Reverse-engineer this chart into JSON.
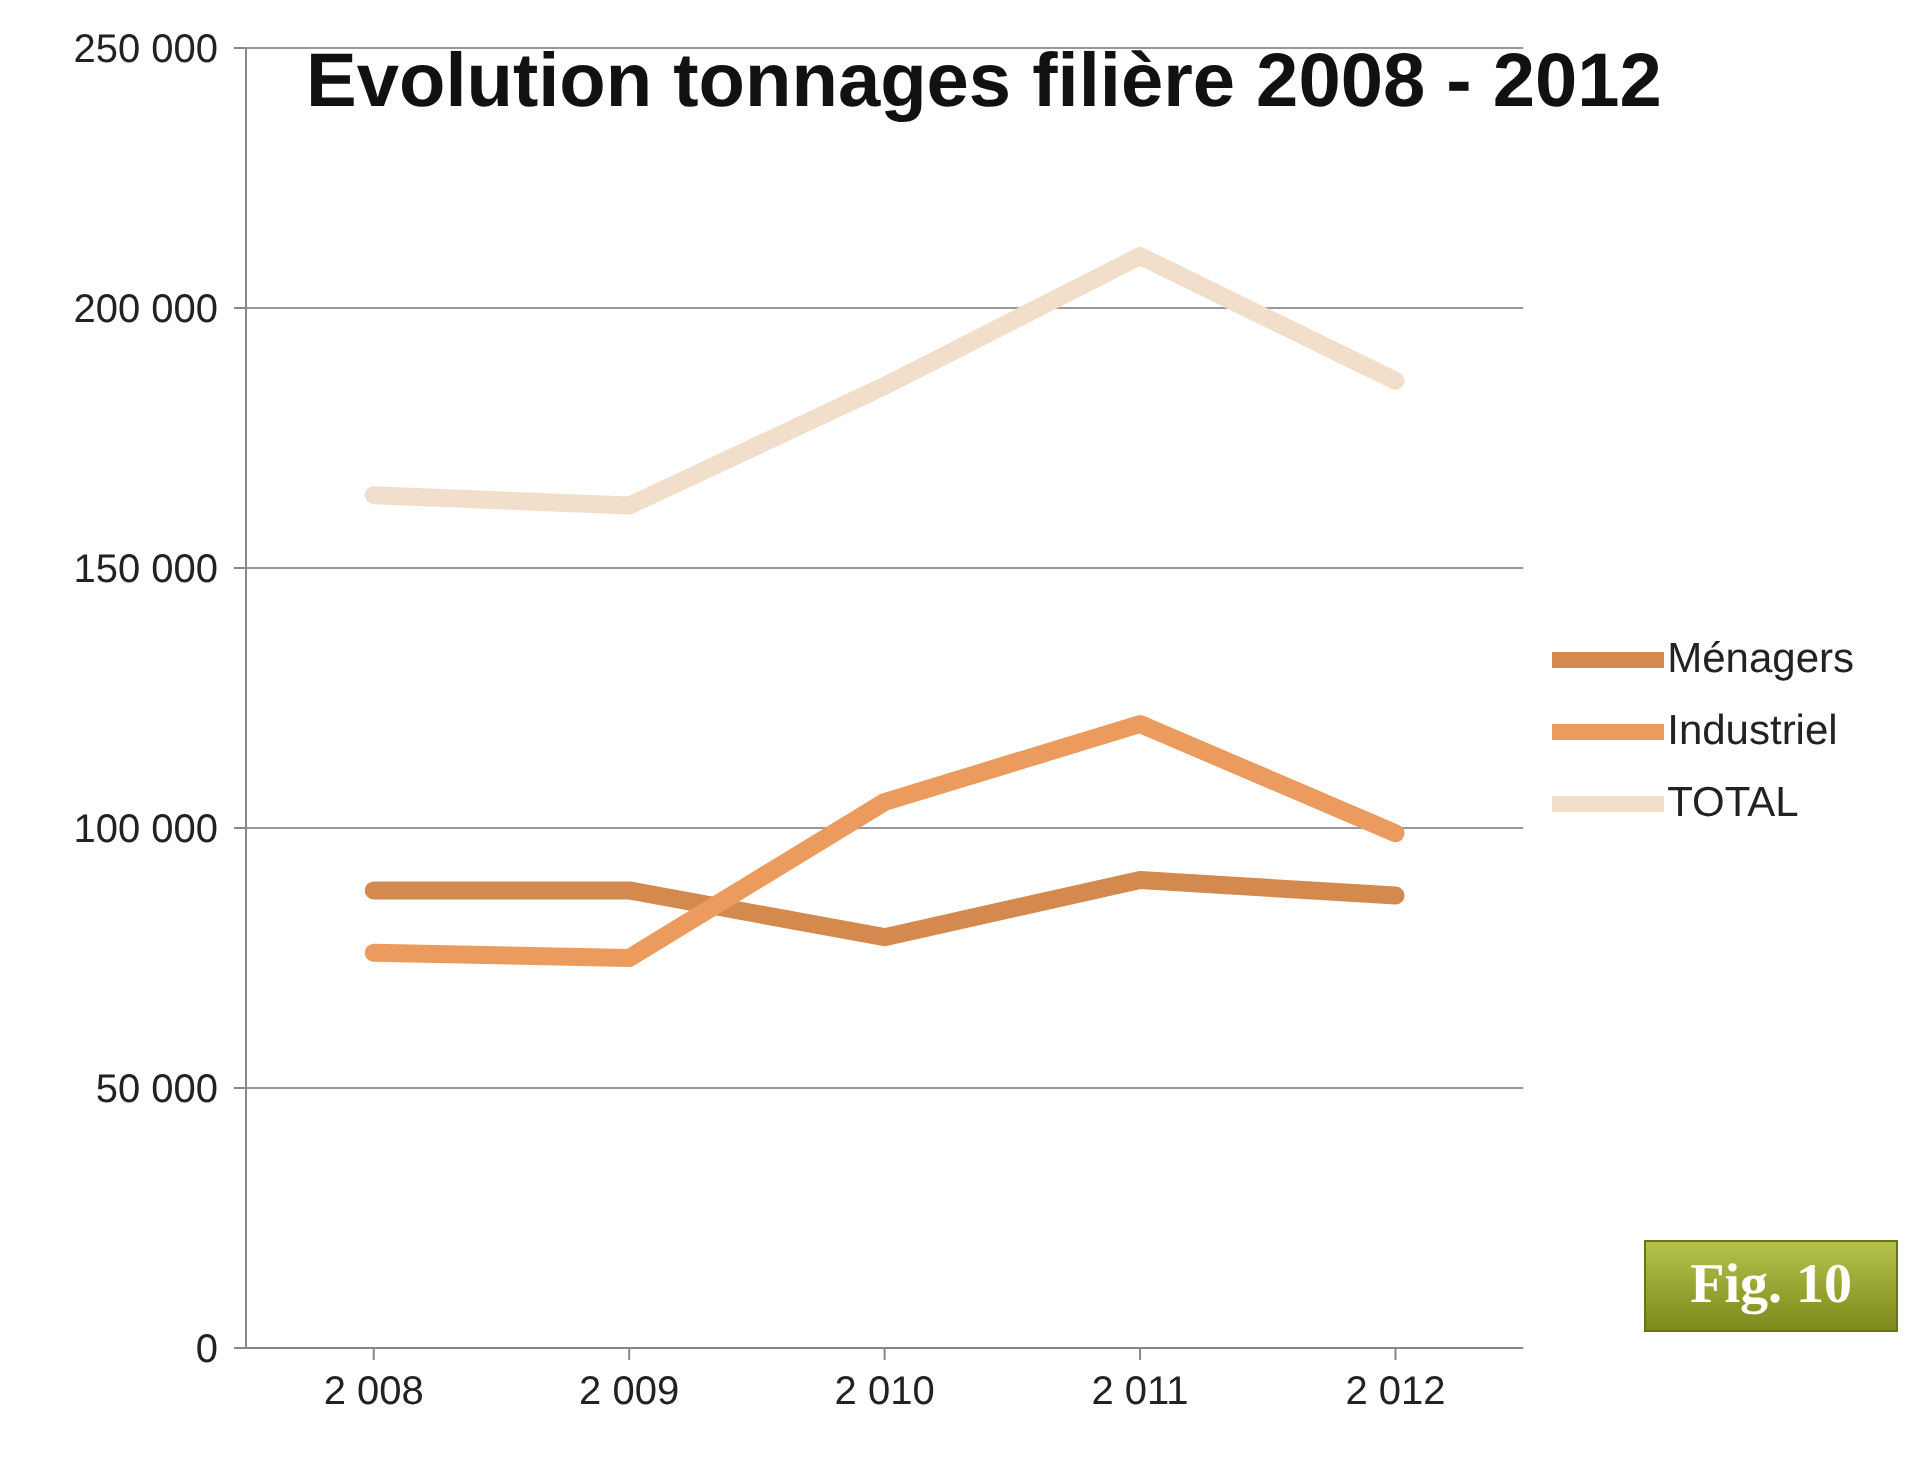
{
  "chart_data": {
    "type": "line",
    "title": "Evolution tonnages filière 2008 - 2012",
    "categories": [
      "2 008",
      "2 009",
      "2 010",
      "2 011",
      "2 012"
    ],
    "series": [
      {
        "name": "Ménagers",
        "color": "#d4894e",
        "values": [
          88000,
          88000,
          79000,
          90000,
          87000
        ]
      },
      {
        "name": "Industriel",
        "color": "#eb9b5e",
        "values": [
          76000,
          75000,
          105000,
          120000,
          99000
        ]
      },
      {
        "name": "TOTAL",
        "color": "#f2dfcb",
        "values": [
          164000,
          162000,
          185000,
          210000,
          186000
        ]
      }
    ],
    "ylim": [
      0,
      250000
    ],
    "yticks": [
      0,
      50000,
      100000,
      150000,
      200000,
      250000
    ],
    "grid": "y",
    "legend": "right",
    "marker": "none",
    "line_style": "solid",
    "annotations": [
      "Fig. 10"
    ]
  }
}
